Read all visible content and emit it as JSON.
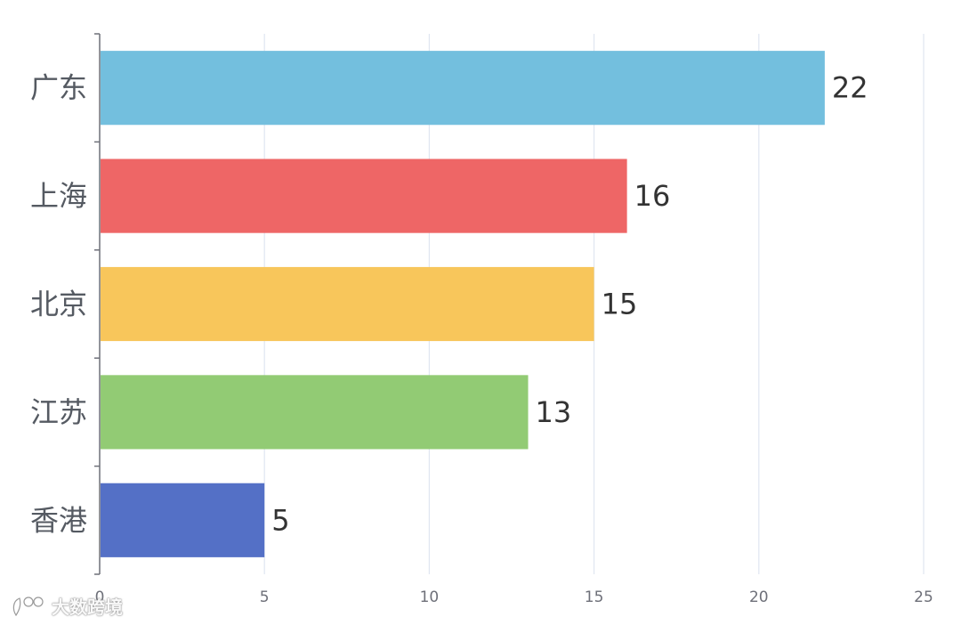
{
  "chart_data": {
    "type": "bar",
    "orientation": "horizontal",
    "categories": [
      "广东",
      "上海",
      "北京",
      "江苏",
      "香港"
    ],
    "values": [
      22,
      16,
      15,
      13,
      5
    ],
    "colors": [
      "#73bfde",
      "#ee6666",
      "#f8c65b",
      "#92cb74",
      "#5470c6"
    ],
    "xlim": [
      0,
      25
    ],
    "xticks": [
      "0",
      "5",
      "10",
      "15",
      "20",
      "25"
    ],
    "grid": true,
    "title": "",
    "xlabel": "",
    "ylabel": ""
  },
  "watermark": {
    "text": "大数跨境"
  }
}
